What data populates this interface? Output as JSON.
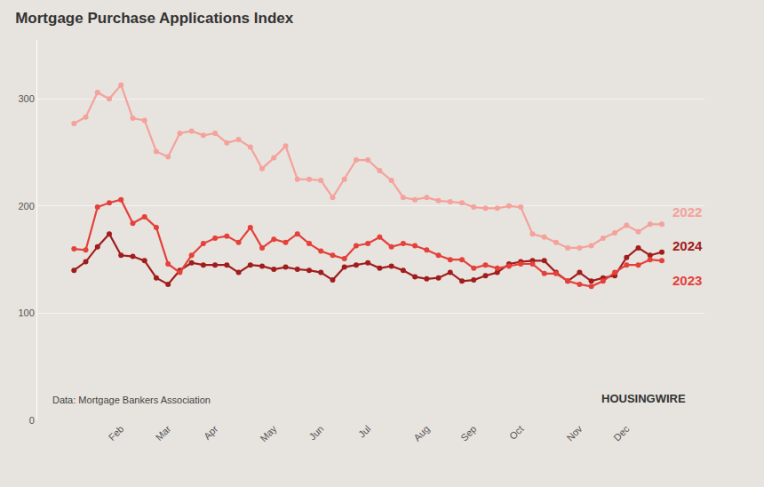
{
  "chart_data": {
    "type": "line",
    "title": "Mortgage Purchase Applications Index",
    "annotations": [
      "Data: Mortgage Bankers Association",
      "HOUSINGWIRE"
    ],
    "categories": [
      null,
      null,
      null,
      null,
      "Feb",
      null,
      null,
      null,
      "Mar",
      null,
      null,
      null,
      "Apr",
      null,
      null,
      null,
      null,
      "May",
      null,
      null,
      null,
      "Jun",
      null,
      null,
      null,
      "Jul",
      null,
      null,
      null,
      null,
      "Aug",
      null,
      null,
      null,
      "Sep",
      null,
      null,
      null,
      "Oct",
      null,
      null,
      null,
      null,
      "Nov",
      null,
      null,
      null,
      "Dec",
      null,
      null,
      null
    ],
    "series": [
      {
        "name": "2022",
        "color": "#f4a29b",
        "values": [
          277,
          283,
          306,
          300,
          313,
          282,
          280,
          251,
          246,
          268,
          270,
          266,
          268,
          259,
          262,
          255,
          235,
          245,
          256,
          225,
          225,
          224,
          208,
          225,
          243,
          243,
          233,
          224,
          208,
          206,
          208,
          205,
          204,
          203,
          199,
          198,
          198,
          200,
          199,
          174,
          171,
          166,
          161,
          161,
          163,
          170,
          175,
          182,
          176,
          183,
          183
        ]
      },
      {
        "name": "2024",
        "color": "#a11d1d",
        "values": [
          140,
          148,
          162,
          174,
          154,
          153,
          149,
          133,
          127,
          140,
          147,
          145,
          145,
          145,
          138,
          145,
          144,
          141,
          143,
          141,
          140,
          138,
          131,
          143,
          145,
          147,
          142,
          144,
          140,
          134,
          132,
          133,
          138,
          130,
          131,
          135,
          138,
          146,
          148,
          149,
          149,
          138,
          130,
          138,
          130,
          133,
          135,
          152,
          161,
          154,
          157
        ]
      },
      {
        "name": "2023",
        "color": "#e5413a",
        "values": [
          160,
          159,
          199,
          203,
          206,
          184,
          190,
          180,
          146,
          138,
          154,
          165,
          170,
          172,
          166,
          180,
          161,
          169,
          166,
          174,
          165,
          158,
          154,
          151,
          163,
          165,
          171,
          162,
          165,
          163,
          159,
          154,
          150,
          150,
          142,
          145,
          142,
          144,
          146,
          146,
          137,
          137,
          130,
          127,
          125,
          130,
          138,
          145,
          145,
          150,
          149
        ]
      }
    ],
    "ylim": [
      0,
      355
    ],
    "yticks": [
      0,
      100,
      200,
      300
    ],
    "grid": true,
    "marker": "circle"
  }
}
